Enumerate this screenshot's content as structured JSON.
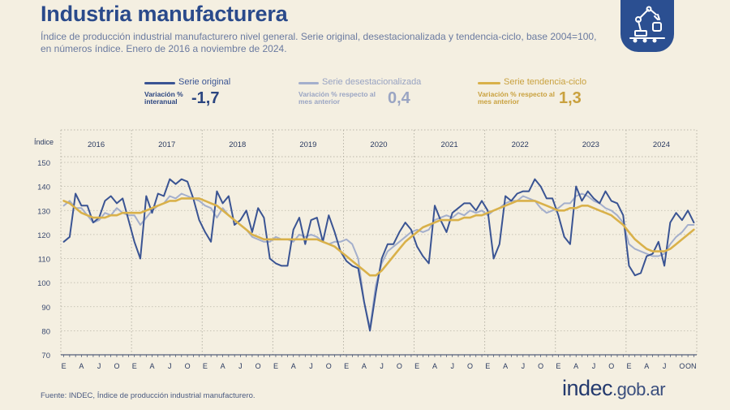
{
  "title": "Industria manufacturera",
  "subtitle": "Índice de producción industrial manufacturero nivel general. Serie original, desestacionalizada y tendencia-ciclo, base 2004=100, en números índice. Enero de 2016 a noviembre de 2024.",
  "legend": {
    "original": {
      "label": "Serie original",
      "sub": "Variación % interanual",
      "value": "-1,7",
      "color": "#3a5493"
    },
    "deseas": {
      "label": "Serie desestacionalizada",
      "sub": "Variación % respecto al mes anterior",
      "value": "0,4",
      "color": "#a4afcc"
    },
    "tendencia": {
      "label": "Serie tendencia-ciclo",
      "sub": "Variación % respecto al mes anterior",
      "value": "1,3",
      "color": "#d9b14a"
    }
  },
  "source": "Fuente: INDEC, Índice de producción industrial manufacturero.",
  "logo": {
    "main": "indec",
    "suffix": ".gob.ar"
  },
  "chart_data": {
    "type": "line",
    "ylabel": "Índice",
    "ylim": [
      70,
      150
    ],
    "yticks": [
      70,
      80,
      90,
      100,
      110,
      120,
      130,
      140,
      150
    ],
    "years": [
      "2016",
      "2017",
      "2018",
      "2019",
      "2020",
      "2021",
      "2022",
      "2023",
      "2024"
    ],
    "month_labels": [
      "E",
      "A",
      "J",
      "O"
    ],
    "last_month_labels": [
      "ON"
    ],
    "series": [
      {
        "name": "Serie original",
        "values": [
          117,
          119,
          137,
          132,
          132,
          125,
          127,
          134,
          136,
          133,
          135,
          126,
          117,
          110,
          136,
          129,
          137,
          136,
          143,
          141,
          143,
          142,
          135,
          126,
          121,
          117,
          138,
          133,
          136,
          124,
          126,
          130,
          121,
          131,
          127,
          110,
          108,
          107,
          107,
          122,
          127,
          116,
          126,
          127,
          117,
          128,
          121,
          113,
          109,
          107,
          106,
          92,
          80,
          96,
          110,
          116,
          116,
          121,
          125,
          122,
          115,
          111,
          108,
          132,
          126,
          121,
          129,
          131,
          133,
          133,
          130,
          134,
          130,
          110,
          116,
          136,
          134,
          137,
          138,
          138,
          143,
          140,
          135,
          135,
          128,
          119,
          116,
          140,
          134,
          138,
          135,
          133,
          138,
          134,
          133,
          128,
          107,
          103,
          104,
          111,
          112,
          117,
          107,
          125,
          129,
          126,
          130,
          125
        ]
      },
      {
        "name": "Serie desestacionalizada",
        "values": [
          132,
          134,
          131,
          131,
          128,
          125,
          126,
          129,
          128,
          131,
          129,
          128,
          128,
          124,
          127,
          130,
          132,
          133,
          136,
          135,
          137,
          136,
          135,
          134,
          132,
          131,
          127,
          131,
          128,
          126,
          124,
          122,
          119,
          118,
          117,
          117,
          119,
          118,
          118,
          117,
          120,
          119,
          120,
          119,
          117,
          116,
          117,
          117,
          118,
          116,
          110,
          92,
          81,
          99,
          108,
          113,
          115,
          117,
          119,
          121,
          122,
          121,
          122,
          126,
          127,
          128,
          127,
          129,
          128,
          130,
          129,
          130,
          128,
          130,
          131,
          133,
          134,
          134,
          136,
          135,
          134,
          131,
          129,
          130,
          131,
          133,
          133,
          136,
          137,
          136,
          134,
          133,
          131,
          130,
          128,
          125,
          116,
          114,
          113,
          112,
          111,
          111,
          112,
          116,
          119,
          121,
          124,
          124
        ]
      },
      {
        "name": "Serie tendencia-ciclo",
        "values": [
          134,
          133,
          131,
          129,
          128,
          127,
          127,
          127,
          128,
          128,
          129,
          129,
          129,
          129,
          130,
          131,
          132,
          133,
          134,
          134,
          135,
          135,
          135,
          135,
          134,
          133,
          132,
          130,
          128,
          126,
          124,
          122,
          120,
          119,
          118,
          118,
          118,
          118,
          118,
          118,
          118,
          118,
          118,
          118,
          117,
          116,
          115,
          113,
          111,
          109,
          107,
          105,
          103,
          103,
          105,
          108,
          111,
          114,
          117,
          119,
          121,
          123,
          124,
          125,
          126,
          126,
          126,
          126,
          127,
          127,
          128,
          128,
          129,
          130,
          131,
          132,
          133,
          134,
          134,
          134,
          134,
          133,
          132,
          131,
          130,
          130,
          131,
          131,
          132,
          132,
          131,
          130,
          129,
          128,
          126,
          124,
          121,
          118,
          116,
          114,
          113,
          113,
          113,
          114,
          116,
          118,
          120,
          122
        ]
      }
    ]
  }
}
